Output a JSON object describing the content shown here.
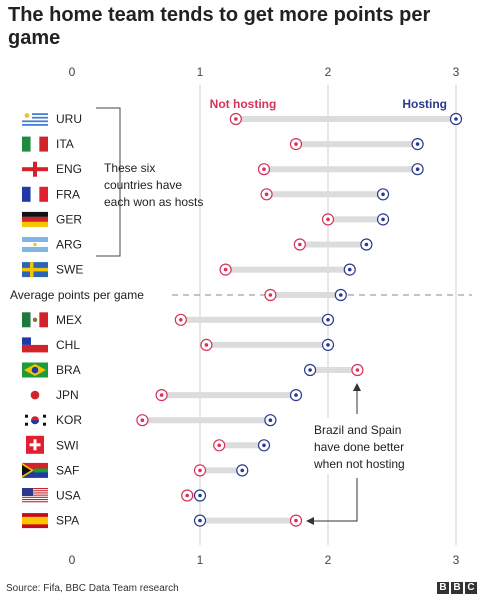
{
  "title": "The home team tends to get more points per game",
  "source": "Source: Fifa, BBC Data Team research",
  "brand": [
    "B",
    "B",
    "C"
  ],
  "colors": {
    "not_hosting": "#d6325a",
    "hosting": "#2b3a8c",
    "connector": "#dcdcdc"
  },
  "chart_data": {
    "type": "dumbbell",
    "title": "The home team tends to get more points per game",
    "x_ticks": [
      "0",
      "1",
      "2",
      "3"
    ],
    "xlim": [
      0,
      3
    ],
    "grid": true,
    "legend": [
      {
        "label": "Not hosting",
        "color": "#d6325a"
      },
      {
        "label": "Hosting",
        "color": "#2b3a8c"
      }
    ],
    "series_names": [
      "Not hosting",
      "Hosting"
    ],
    "average_label": "Average points per game",
    "average": {
      "not_hosting": 1.55,
      "hosting": 2.1
    },
    "rows": [
      {
        "code": "URU",
        "flag": "uruguay",
        "not_hosting": 1.28,
        "hosting": 3.0
      },
      {
        "code": "ITA",
        "flag": "italy",
        "not_hosting": 1.75,
        "hosting": 2.7
      },
      {
        "code": "ENG",
        "flag": "england",
        "not_hosting": 1.5,
        "hosting": 2.7
      },
      {
        "code": "FRA",
        "flag": "france",
        "not_hosting": 1.52,
        "hosting": 2.43
      },
      {
        "code": "GER",
        "flag": "germany",
        "not_hosting": 2.0,
        "hosting": 2.43
      },
      {
        "code": "ARG",
        "flag": "argentina",
        "not_hosting": 1.78,
        "hosting": 2.3
      },
      {
        "code": "SWE",
        "flag": "sweden",
        "not_hosting": 1.2,
        "hosting": 2.17
      },
      {
        "code": "MEX",
        "flag": "mexico",
        "not_hosting": 0.85,
        "hosting": 2.0
      },
      {
        "code": "CHL",
        "flag": "chile",
        "not_hosting": 1.05,
        "hosting": 2.0
      },
      {
        "code": "BRA",
        "flag": "brazil",
        "not_hosting": 2.23,
        "hosting": 1.86
      },
      {
        "code": "JPN",
        "flag": "japan",
        "not_hosting": 0.7,
        "hosting": 1.75
      },
      {
        "code": "KOR",
        "flag": "korea",
        "not_hosting": 0.55,
        "hosting": 1.55
      },
      {
        "code": "SWI",
        "flag": "switzerland",
        "not_hosting": 1.15,
        "hosting": 1.5
      },
      {
        "code": "SAF",
        "flag": "southafrica",
        "not_hosting": 1.0,
        "hosting": 1.33
      },
      {
        "code": "USA",
        "flag": "usa",
        "not_hosting": 0.9,
        "hosting": 1.0
      },
      {
        "code": "SPA",
        "flag": "spain",
        "not_hosting": 1.75,
        "hosting": 1.0
      }
    ],
    "annotations": {
      "hosts": [
        "These six",
        "countries have",
        "each won as hosts"
      ],
      "brazil_spain": [
        "Brazil and Spain",
        "have done better",
        "when not hosting"
      ]
    }
  }
}
